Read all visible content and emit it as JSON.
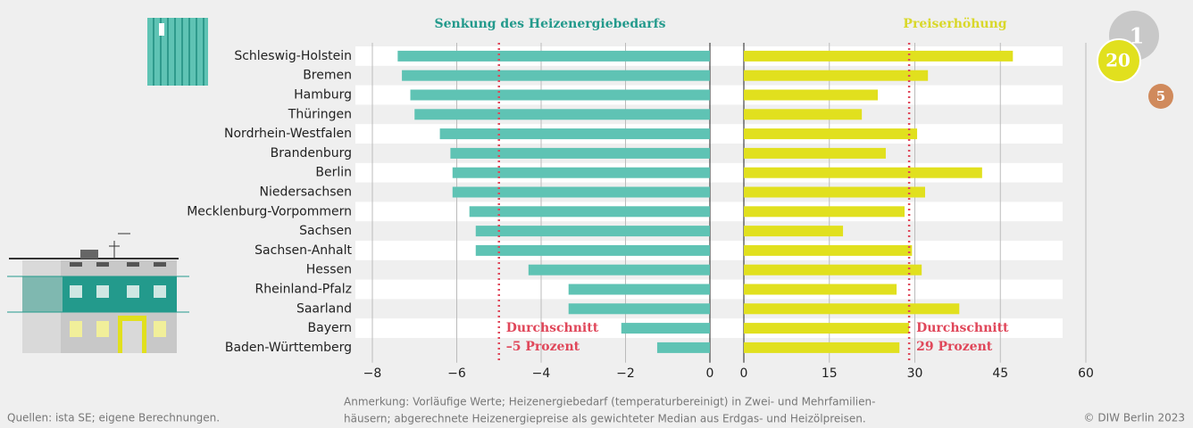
{
  "chart_data": {
    "type": "bar",
    "categories": [
      "Schleswig-Holstein",
      "Bremen",
      "Hamburg",
      "Thüringen",
      "Nordrhein-Westfalen",
      "Brandenburg",
      "Berlin",
      "Niedersachsen",
      "Mecklenburg-Vorpommern",
      "Sachsen",
      "Sachsen-Anhalt",
      "Hessen",
      "Rheinland-Pfalz",
      "Saarland",
      "Bayern",
      "Baden-Württemberg"
    ],
    "panels": [
      {
        "title": "Senkung des Heizenergiebedarfs",
        "color": "#5fc3b4",
        "values": [
          -7.4,
          -7.3,
          -7.1,
          -7.0,
          -6.4,
          -6.15,
          -6.1,
          -6.1,
          -5.7,
          -5.55,
          -5.55,
          -4.3,
          -3.35,
          -3.35,
          -2.1,
          -1.25
        ],
        "xlim": [
          -8,
          0
        ],
        "xticks": [
          {
            "value": -8,
            "label": "−8"
          },
          {
            "value": -6,
            "label": "−6"
          },
          {
            "value": -4,
            "label": "−4"
          },
          {
            "value": -2,
            "label": "−2"
          },
          0
        ],
        "average": -5,
        "average_label": [
          "Durchschnitt",
          "–5 Prozent"
        ]
      },
      {
        "title": "Preiserhöhung",
        "color": "#e1e01e",
        "values": [
          47.2,
          32.3,
          23.5,
          20.7,
          30.4,
          24.9,
          41.8,
          31.8,
          28.2,
          17.4,
          29.5,
          31.2,
          26.8,
          37.8,
          29.0,
          27.3
        ],
        "xlim": [
          0,
          60
        ],
        "xticks": [
          0,
          15,
          30,
          45,
          60
        ],
        "average": 29,
        "average_label": [
          "Durchschnitt",
          "29 Prozent"
        ]
      }
    ],
    "coins": [
      "1",
      "20",
      "5"
    ],
    "source": "Quellen: ista SE; eigene Berechnungen.",
    "note": [
      "Anmerkung: Vorläufige Werte; Heizenergiebedarf (temperaturbereinigt) in Zwei- und Mehrfamilien-",
      "häusern; abgerechnete Heizenergiepreise als gewichteter Median aus Erdgas- und Heizölpreisen."
    ],
    "copyright": "© DIW Berlin 2023"
  }
}
